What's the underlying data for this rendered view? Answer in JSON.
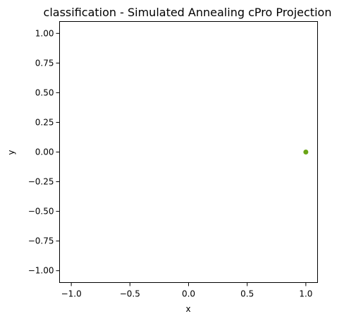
{
  "chart_data": {
    "type": "scatter",
    "title": "classification - Simulated Annealing cPro Projection",
    "xlabel": "x",
    "ylabel": "y",
    "xlim": [
      -1.1,
      1.1
    ],
    "ylim": [
      -1.1,
      1.1
    ],
    "xticks": [
      -1.0,
      -0.5,
      0.0,
      0.5,
      1.0
    ],
    "xtick_labels": [
      "−1.0",
      "−0.5",
      "0.0",
      "0.5",
      "1.0"
    ],
    "yticks": [
      1.0,
      0.75,
      0.5,
      0.25,
      0.0,
      -0.25,
      -0.5,
      -0.75,
      -1.0
    ],
    "ytick_labels": [
      "1.00",
      "0.75",
      "0.50",
      "0.25",
      "0.00",
      "−0.25",
      "−0.50",
      "−0.75",
      "−1.00"
    ],
    "grid": false,
    "series": [
      {
        "color": "#6aa516",
        "points": [
          {
            "x": 1.0,
            "y": 0.0
          }
        ]
      }
    ]
  }
}
